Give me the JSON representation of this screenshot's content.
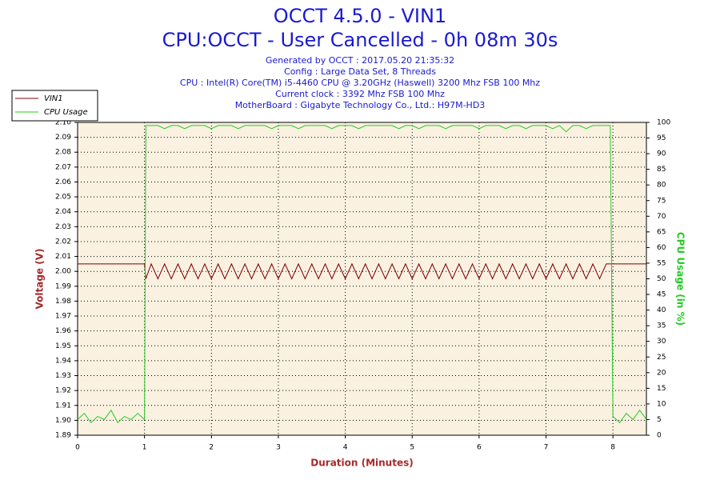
{
  "chart_data": {
    "type": "line",
    "title": "OCCT 4.5.0 - VIN1",
    "subtitle": "CPU:OCCT - User Cancelled - 0h 08m 30s",
    "info_lines": [
      "Generated by OCCT : 2017.05.20 21:35:32",
      "Config : Large Data Set, 8 Threads",
      "CPU : Intel(R) Core(TM) i5-4460 CPU @ 3.20GHz (Haswell) 3200 Mhz FSB 100 Mhz",
      "Current clock : 3392 Mhz FSB 100 Mhz",
      "MotherBoard : Gigabyte Technology Co., Ltd.: H97M-HD3"
    ],
    "x_label": "Duration (Minutes)",
    "y_label": "Voltage (V)",
    "y2_label": "CPU Usage (in %)",
    "xlim": [
      0,
      8.5
    ],
    "xticks": [
      0,
      1,
      2,
      3,
      4,
      5,
      6,
      7,
      8
    ],
    "ylim": [
      1.89,
      2.1
    ],
    "yticks": [
      1.89,
      {
        "value": 1.9,
        "label": "1.90"
      },
      1.91,
      1.92,
      1.93,
      1.94,
      1.95,
      1.96,
      1.97,
      1.98,
      1.99,
      {
        "value": 2,
        "label": "2.00"
      },
      2.01,
      2.02,
      2.03,
      2.04,
      2.05,
      2.06,
      2.07,
      2.08,
      2.09,
      {
        "value": 2.1,
        "label": "2.10"
      }
    ],
    "y2lim": [
      0,
      100
    ],
    "y2ticks": [
      0,
      5,
      10,
      15,
      20,
      25,
      30,
      35,
      40,
      45,
      50,
      55,
      60,
      65,
      70,
      75,
      80,
      85,
      90,
      95,
      100
    ],
    "grid": true,
    "legend": "top-left",
    "x": [
      0,
      0.1,
      0.2,
      0.3,
      0.4,
      0.5,
      0.6,
      0.7,
      0.8,
      0.9,
      1.0,
      1.02,
      1.1,
      1.2,
      1.3,
      1.4,
      1.5,
      1.6,
      1.7,
      1.8,
      1.9,
      2.0,
      2.1,
      2.2,
      2.3,
      2.4,
      2.5,
      2.6,
      2.7,
      2.8,
      2.9,
      3.0,
      3.1,
      3.2,
      3.3,
      3.4,
      3.5,
      3.6,
      3.7,
      3.8,
      3.9,
      4.0,
      4.1,
      4.2,
      4.3,
      4.4,
      4.5,
      4.6,
      4.7,
      4.8,
      4.9,
      5.0,
      5.1,
      5.2,
      5.3,
      5.4,
      5.5,
      5.6,
      5.7,
      5.8,
      5.9,
      6.0,
      6.1,
      6.2,
      6.3,
      6.4,
      6.5,
      6.6,
      6.7,
      6.8,
      6.9,
      7.0,
      7.1,
      7.2,
      7.3,
      7.4,
      7.5,
      7.6,
      7.7,
      7.8,
      7.9,
      7.96,
      8.0,
      8.1,
      8.2,
      8.3,
      8.4,
      8.5
    ],
    "series": [
      {
        "name": "VIN1",
        "color": "#800000",
        "values": [
          2.005,
          2.005,
          2.005,
          2.005,
          2.005,
          2.005,
          2.005,
          2.005,
          2.005,
          2.005,
          2.005,
          1.995,
          2.005,
          1.995,
          2.005,
          1.995,
          2.005,
          1.995,
          2.005,
          1.995,
          2.005,
          1.995,
          2.005,
          1.995,
          2.005,
          1.995,
          2.005,
          1.995,
          2.005,
          1.995,
          2.005,
          1.995,
          2.005,
          1.995,
          2.005,
          1.995,
          2.005,
          1.995,
          2.005,
          1.995,
          2.005,
          1.995,
          2.005,
          1.995,
          2.005,
          1.995,
          2.005,
          1.995,
          2.005,
          1.995,
          2.005,
          1.995,
          2.005,
          1.995,
          2.005,
          1.995,
          2.005,
          1.995,
          2.005,
          1.995,
          2.005,
          1.995,
          2.005,
          1.995,
          2.005,
          1.995,
          2.005,
          1.995,
          2.005,
          1.995,
          2.005,
          1.995,
          2.005,
          1.995,
          2.005,
          1.995,
          2.005,
          1.995,
          2.005,
          1.995,
          2.005,
          2.005,
          2.005,
          2.005,
          2.005,
          2.005,
          2.005,
          2.005
        ]
      },
      {
        "name": "CPU Usage",
        "color": "#22cc22",
        "axis": "y2",
        "values": [
          5,
          7,
          4,
          6,
          5,
          8,
          4,
          6,
          5,
          7,
          5,
          99,
          99,
          99,
          98,
          99,
          99,
          98,
          99,
          99,
          99,
          98,
          99,
          99,
          99,
          98,
          99,
          99,
          99,
          99,
          98,
          99,
          99,
          99,
          98,
          99,
          99,
          99,
          99,
          98,
          99,
          99,
          99,
          98,
          99,
          99,
          99,
          99,
          99,
          98,
          99,
          99,
          98,
          99,
          99,
          99,
          98,
          99,
          99,
          99,
          99,
          98,
          99,
          99,
          99,
          98,
          99,
          99,
          98,
          99,
          99,
          99,
          98,
          99,
          97,
          99,
          99,
          98,
          99,
          99,
          99,
          99,
          6,
          4,
          7,
          5,
          8,
          5
        ]
      }
    ]
  }
}
